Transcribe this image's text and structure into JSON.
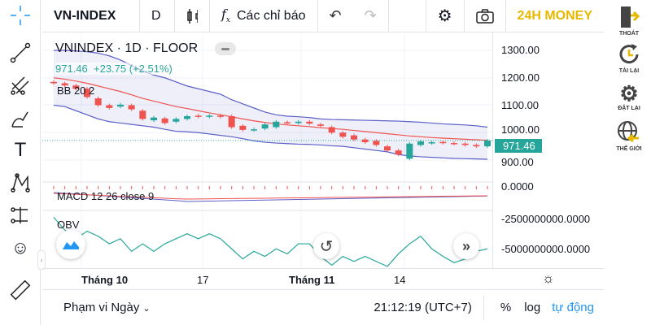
{
  "topbar": {
    "symbol": "VN-INDEX",
    "interval": "D",
    "indicators_label": "Các chỉ báo",
    "brand": "24H MONEY"
  },
  "legend": {
    "title": "VNINDEX · 1D · FLOOR",
    "price": "971.46",
    "change": "+23.75 (+2.51%)",
    "bb": "BB 20 2",
    "macd": "MACD 12 26 close 9",
    "obv": "OBV"
  },
  "price_axis": [
    "1300.00",
    "1200.00",
    "1100.00",
    "1000.00",
    "900.00"
  ],
  "last_price": "971.46",
  "macd_axis": [
    "0.0000"
  ],
  "obv_axis": [
    "-2500000000.0000",
    "-5000000000.0000"
  ],
  "time_axis": [
    {
      "label": "Tháng 10",
      "bold": true
    },
    {
      "label": "17",
      "bold": false
    },
    {
      "label": "Tháng 11",
      "bold": true
    },
    {
      "label": "14",
      "bold": false
    }
  ],
  "bottom": {
    "range": "Phạm vi Ngày",
    "time": "21:12:19 (UTC+7)",
    "percent": "%",
    "log": "log",
    "auto": "tự động"
  },
  "right_tools": [
    {
      "label": "THOÁT",
      "icon": "exit-icon"
    },
    {
      "label": "TẢI LẠI",
      "icon": "reload-icon"
    },
    {
      "label": "ĐẶT LẠI",
      "icon": "reset-icon"
    },
    {
      "label": "THẾ GIỚI",
      "icon": "globe-icon"
    }
  ],
  "colors": {
    "up": "#26a69a",
    "down": "#ef5350",
    "bb_upper": "#5b5fc7",
    "bb_mid": "#ef5350",
    "brand": "#e6b800",
    "accent": "#2196f3"
  },
  "chart_data": {
    "type": "candlestick",
    "ylim": [
      880,
      1320
    ],
    "candles": [
      [
        1185,
        1180
      ],
      [
        1180,
        1172
      ],
      [
        1172,
        1160
      ],
      [
        1160,
        1130
      ],
      [
        1125,
        1100
      ],
      [
        1100,
        1090
      ],
      [
        1095,
        1102
      ],
      [
        1100,
        1085
      ],
      [
        1080,
        1050
      ],
      [
        1045,
        1055
      ],
      [
        1052,
        1035
      ],
      [
        1040,
        1050
      ],
      [
        1050,
        1060
      ],
      [
        1062,
        1058
      ],
      [
        1058,
        1062
      ],
      [
        1062,
        1058
      ],
      [
        1060,
        1020
      ],
      [
        1025,
        1010
      ],
      [
        1010,
        1012
      ],
      [
        1015,
        1030
      ],
      [
        1020,
        1040
      ],
      [
        1038,
        1035
      ],
      [
        1035,
        1040
      ],
      [
        1040,
        1033
      ],
      [
        1030,
        1025
      ],
      [
        1020,
        1000
      ],
      [
        1000,
        985
      ],
      [
        990,
        975
      ],
      [
        975,
        965
      ],
      [
        970,
        955
      ],
      [
        950,
        935
      ],
      [
        935,
        920
      ],
      [
        905,
        960
      ],
      [
        955,
        968
      ],
      [
        962,
        965
      ],
      [
        966,
        963
      ],
      [
        962,
        960
      ],
      [
        960,
        955
      ],
      [
        955,
        950
      ],
      [
        950,
        971
      ]
    ],
    "bb_upper": [
      1300,
      1300,
      1298,
      1295,
      1290,
      1280,
      1265,
      1245,
      1225,
      1210,
      1200,
      1185,
      1170,
      1160,
      1150,
      1140,
      1120,
      1105,
      1090,
      1075,
      1065,
      1060,
      1058,
      1055,
      1050,
      1048,
      1047,
      1046,
      1045,
      1044,
      1043,
      1042,
      1040,
      1038,
      1035,
      1032,
      1030,
      1028,
      1025,
      1020
    ],
    "bb_mid": [
      1200,
      1195,
      1188,
      1180,
      1170,
      1160,
      1150,
      1138,
      1125,
      1115,
      1105,
      1095,
      1088,
      1080,
      1072,
      1065,
      1058,
      1050,
      1043,
      1037,
      1032,
      1028,
      1025,
      1022,
      1018,
      1015,
      1012,
      1008,
      1004,
      1000,
      996,
      992,
      988,
      985,
      982,
      980,
      978,
      976,
      974,
      972
    ],
    "bb_lower": [
      1100,
      1095,
      1080,
      1065,
      1050,
      1040,
      1035,
      1030,
      1025,
      1020,
      1012,
      1005,
      1003,
      1000,
      995,
      990,
      985,
      978,
      970,
      965,
      962,
      960,
      958,
      957,
      955,
      952,
      950,
      945,
      940,
      935,
      930,
      920,
      915,
      912,
      910,
      908,
      906,
      905,
      904,
      903
    ],
    "obv": [
      -1.5,
      -2.5,
      -3.2,
      -2.6,
      -3.0,
      -3.6,
      -3.2,
      -4.2,
      -3.6,
      -4.2,
      -3.6,
      -3.2,
      -2.8,
      -3.2,
      -2.8,
      -3.2,
      -4.0,
      -4.8,
      -4.2,
      -4.6,
      -4.0,
      -4.4,
      -3.6,
      -3.6,
      -4.6,
      -5.3,
      -4.6,
      -5.0,
      -4.6,
      -5.0,
      -5.4,
      -4.4,
      -3.6,
      -3.0,
      -4.0,
      -4.6,
      -5.1,
      -4.8,
      -4.2,
      -4.0
    ]
  }
}
